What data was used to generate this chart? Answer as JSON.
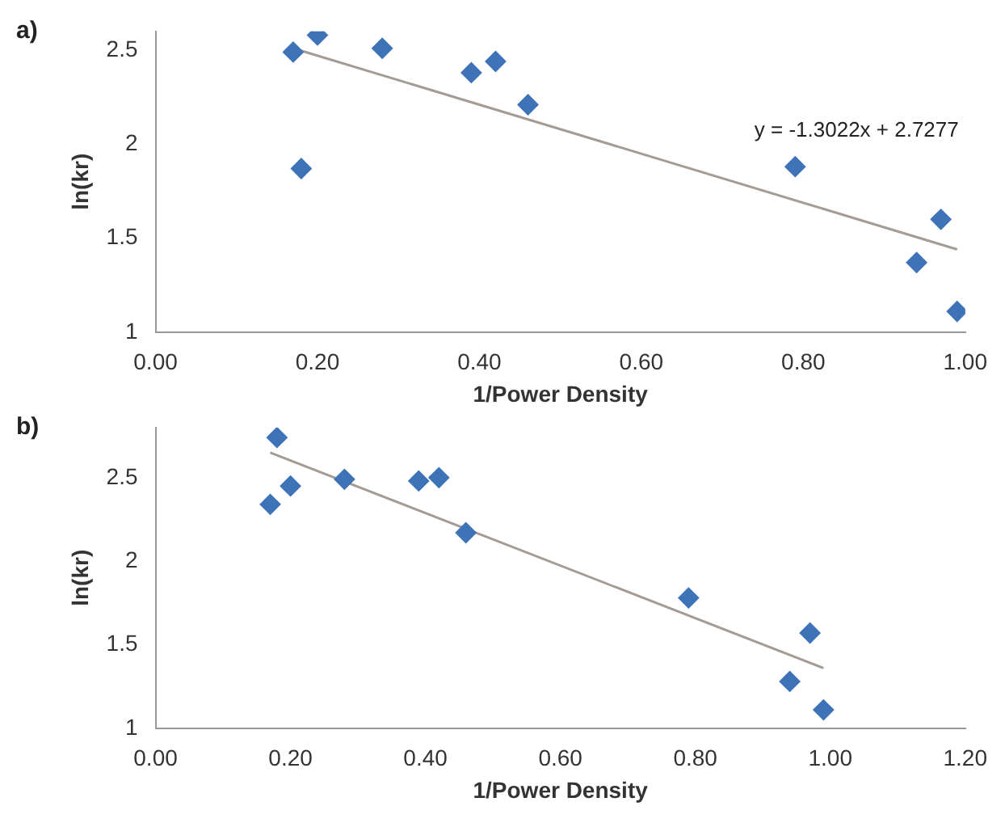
{
  "chart_data": [
    {
      "type": "scatter",
      "xlabel": "1/Power Density",
      "ylabel": "ln(kr)",
      "annotations": [
        "a)",
        "y = -1.3022x + 2.7277"
      ],
      "xlim": [
        0,
        1
      ],
      "xticks": [
        {
          "value": 0,
          "label": "0.00"
        },
        {
          "value": 0.2,
          "label": "0.20"
        },
        {
          "value": 0.4,
          "label": "0.40"
        },
        {
          "value": 0.6,
          "label": "0.60"
        },
        {
          "value": 0.8,
          "label": "0.80"
        },
        {
          "value": 1,
          "label": "1.00"
        }
      ],
      "ylim": [
        1,
        2.6
      ],
      "yticks": [
        1,
        1.5,
        2,
        2.5
      ],
      "grid": false,
      "legend": false,
      "series": [
        {
          "color": "#3f73b8",
          "marker": "diamond",
          "x": [
            0.17,
            0.18,
            0.2,
            0.28,
            0.39,
            0.42,
            0.46,
            0.79,
            0.94,
            0.97,
            0.99
          ],
          "values": [
            2.49,
            1.87,
            2.58,
            2.51,
            2.38,
            2.44,
            2.21,
            1.88,
            1.37,
            1.6,
            1.11
          ]
        },
        {
          "type": "line",
          "marker": "none",
          "color": "#a39b94",
          "x": [
            0.17,
            0.99
          ],
          "values": [
            2.51,
            1.44
          ]
        }
      ]
    },
    {
      "type": "scatter",
      "xlabel": "1/Power Density",
      "ylabel": "ln(kr)",
      "annotations": [
        "b)"
      ],
      "xlim": [
        0,
        1.2
      ],
      "xticks": [
        {
          "value": 0,
          "label": "0.00"
        },
        {
          "value": 0.2,
          "label": "0.20"
        },
        {
          "value": 0.4,
          "label": "0.40"
        },
        {
          "value": 0.6,
          "label": "0.60"
        },
        {
          "value": 0.8,
          "label": "0.80"
        },
        {
          "value": 1,
          "label": "1.00"
        },
        {
          "value": 1.2,
          "label": "1.20"
        }
      ],
      "ylim": [
        1,
        2.8
      ],
      "yticks": [
        1,
        1.5,
        2,
        2.5
      ],
      "grid": false,
      "legend": false,
      "series": [
        {
          "color": "#3f73b8",
          "marker": "diamond",
          "x": [
            0.17,
            0.18,
            0.2,
            0.28,
            0.39,
            0.42,
            0.46,
            0.79,
            0.94,
            0.97,
            0.99
          ],
          "values": [
            2.34,
            2.74,
            2.45,
            2.49,
            2.48,
            2.5,
            2.17,
            1.78,
            1.28,
            1.57,
            1.11
          ]
        },
        {
          "type": "line",
          "marker": "none",
          "color": "#a39b94",
          "x": [
            0.17,
            0.99
          ],
          "values": [
            2.65,
            1.36
          ]
        }
      ]
    }
  ]
}
